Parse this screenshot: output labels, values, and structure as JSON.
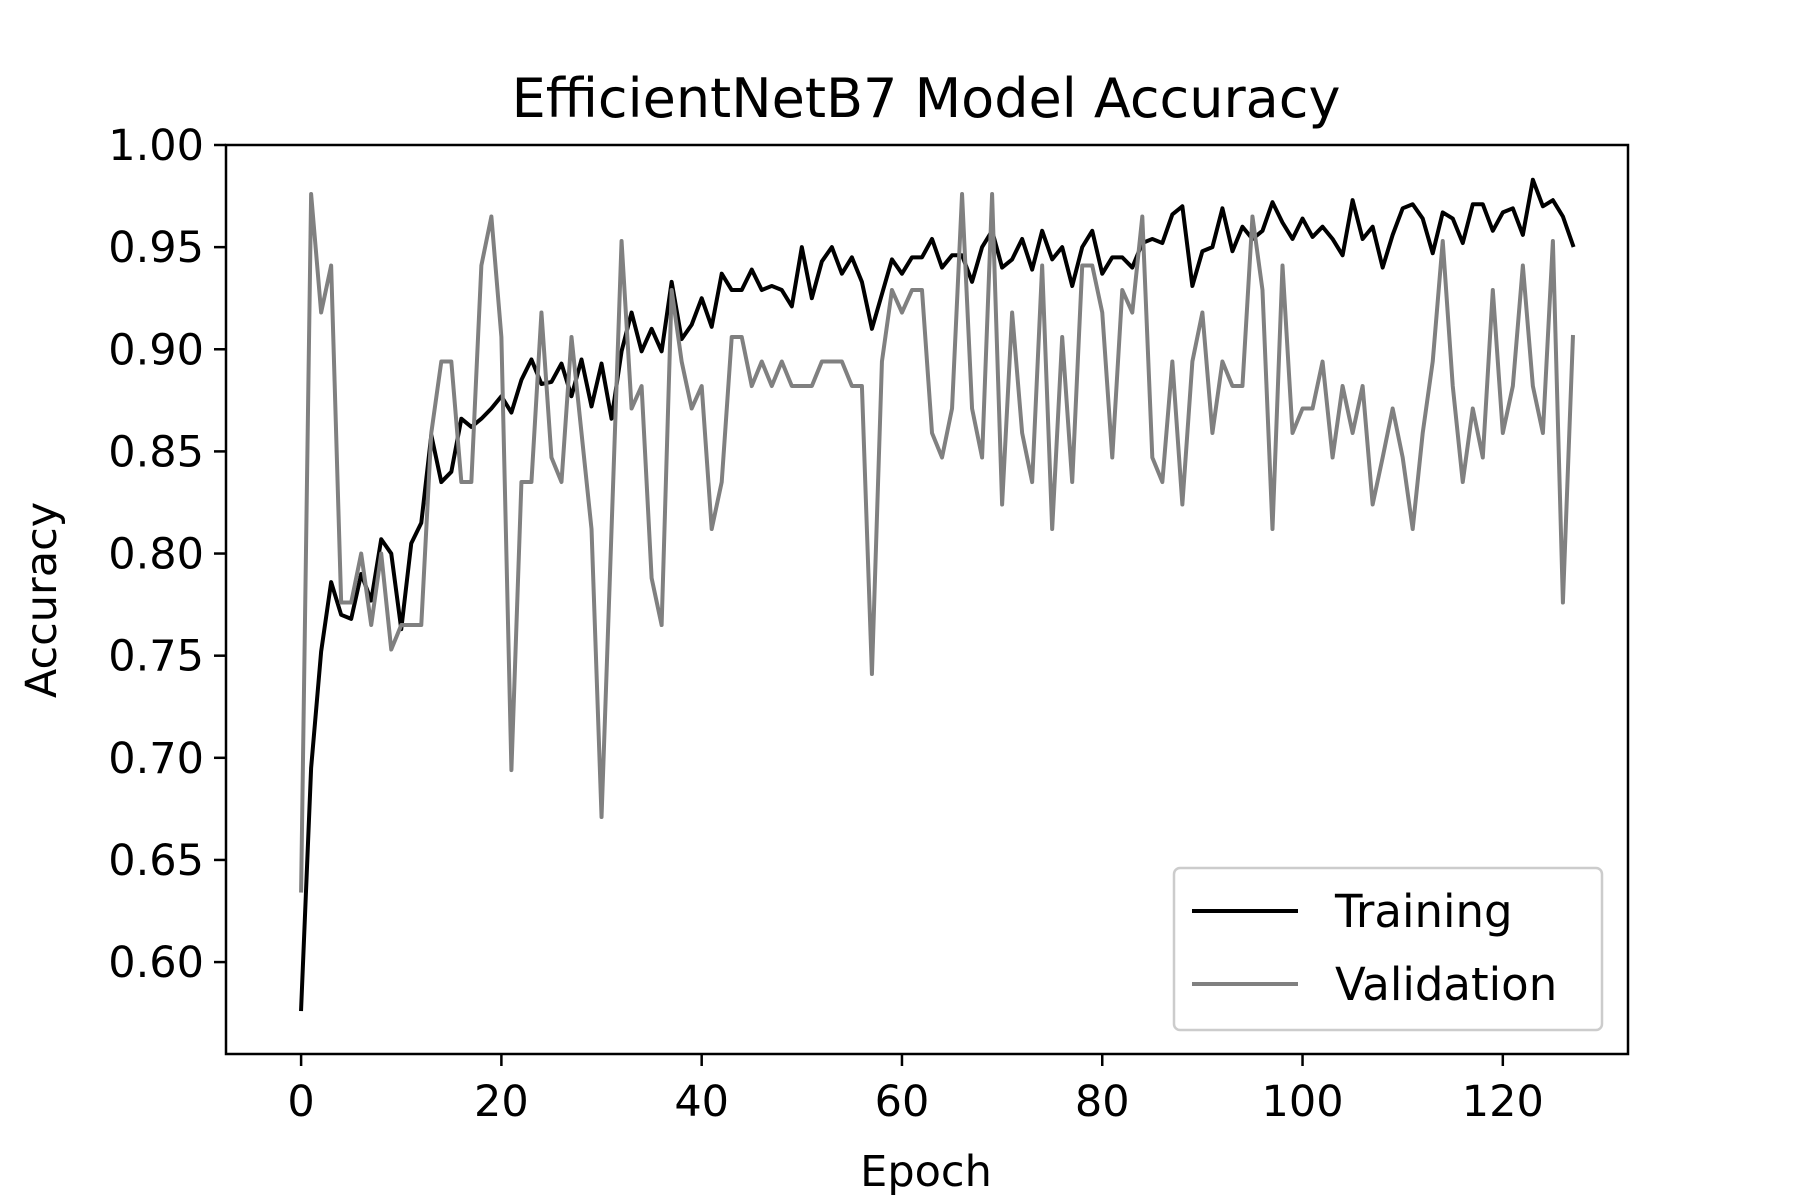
{
  "chart_data": {
    "type": "line",
    "title": "EfficientNetB7 Model Accuracy",
    "xlabel": "Epoch",
    "ylabel": "Accuracy",
    "xlim": [
      -7.5,
      132.5
    ],
    "ylim": [
      0.555,
      1.0
    ],
    "xticks": [
      0,
      20,
      40,
      60,
      80,
      100,
      120
    ],
    "yticks": [
      0.6,
      0.65,
      0.7,
      0.75,
      0.8,
      0.85,
      0.9,
      0.95,
      1.0
    ],
    "legend": {
      "placement": "lower-right"
    },
    "grid": false,
    "series": [
      {
        "name": "Training",
        "color": "#000000",
        "values": [
          0.577,
          0.695,
          0.752,
          0.786,
          0.77,
          0.768,
          0.79,
          0.777,
          0.807,
          0.8,
          0.763,
          0.805,
          0.815,
          0.858,
          0.835,
          0.84,
          0.866,
          0.862,
          0.866,
          0.871,
          0.877,
          0.869,
          0.885,
          0.895,
          0.883,
          0.884,
          0.893,
          0.877,
          0.895,
          0.872,
          0.893,
          0.866,
          0.899,
          0.918,
          0.899,
          0.91,
          0.899,
          0.933,
          0.905,
          0.912,
          0.925,
          0.911,
          0.937,
          0.929,
          0.929,
          0.939,
          0.929,
          0.931,
          0.929,
          0.921,
          0.95,
          0.925,
          0.943,
          0.95,
          0.937,
          0.945,
          0.933,
          0.91,
          0.927,
          0.944,
          0.937,
          0.945,
          0.945,
          0.954,
          0.94,
          0.946,
          0.946,
          0.933,
          0.95,
          0.958,
          0.94,
          0.944,
          0.954,
          0.939,
          0.958,
          0.944,
          0.95,
          0.931,
          0.95,
          0.958,
          0.937,
          0.945,
          0.945,
          0.94,
          0.952,
          0.954,
          0.952,
          0.966,
          0.97,
          0.931,
          0.948,
          0.95,
          0.969,
          0.948,
          0.96,
          0.954,
          0.958,
          0.972,
          0.962,
          0.954,
          0.964,
          0.955,
          0.96,
          0.954,
          0.946,
          0.973,
          0.954,
          0.96,
          0.94,
          0.956,
          0.969,
          0.971,
          0.964,
          0.947,
          0.967,
          0.964,
          0.952,
          0.971,
          0.971,
          0.958,
          0.967,
          0.969,
          0.956,
          0.983,
          0.97,
          0.973,
          0.965,
          0.951
        ]
      },
      {
        "name": "Validation",
        "color": "#808080",
        "values": [
          0.635,
          0.976,
          0.918,
          0.941,
          0.776,
          0.776,
          0.8,
          0.765,
          0.8,
          0.753,
          0.765,
          0.765,
          0.765,
          0.859,
          0.894,
          0.894,
          0.835,
          0.835,
          0.941,
          0.965,
          0.906,
          0.694,
          0.835,
          0.835,
          0.918,
          0.847,
          0.835,
          0.906,
          0.859,
          0.812,
          0.671,
          0.812,
          0.953,
          0.871,
          0.882,
          0.788,
          0.765,
          0.929,
          0.894,
          0.871,
          0.882,
          0.812,
          0.835,
          0.906,
          0.906,
          0.882,
          0.894,
          0.882,
          0.894,
          0.882,
          0.882,
          0.882,
          0.894,
          0.894,
          0.894,
          0.882,
          0.882,
          0.741,
          0.894,
          0.929,
          0.918,
          0.929,
          0.929,
          0.859,
          0.847,
          0.871,
          0.976,
          0.871,
          0.847,
          0.976,
          0.824,
          0.918,
          0.859,
          0.835,
          0.941,
          0.812,
          0.906,
          0.835,
          0.941,
          0.941,
          0.918,
          0.847,
          0.929,
          0.918,
          0.965,
          0.847,
          0.835,
          0.894,
          0.824,
          0.894,
          0.918,
          0.859,
          0.894,
          0.882,
          0.882,
          0.965,
          0.929,
          0.812,
          0.941,
          0.859,
          0.871,
          0.871,
          0.894,
          0.847,
          0.882,
          0.859,
          0.882,
          0.824,
          0.847,
          0.871,
          0.847,
          0.812,
          0.859,
          0.894,
          0.953,
          0.882,
          0.835,
          0.871,
          0.847,
          0.929,
          0.859,
          0.882,
          0.941,
          0.882,
          0.859,
          0.953,
          0.776,
          0.906
        ]
      }
    ]
  }
}
